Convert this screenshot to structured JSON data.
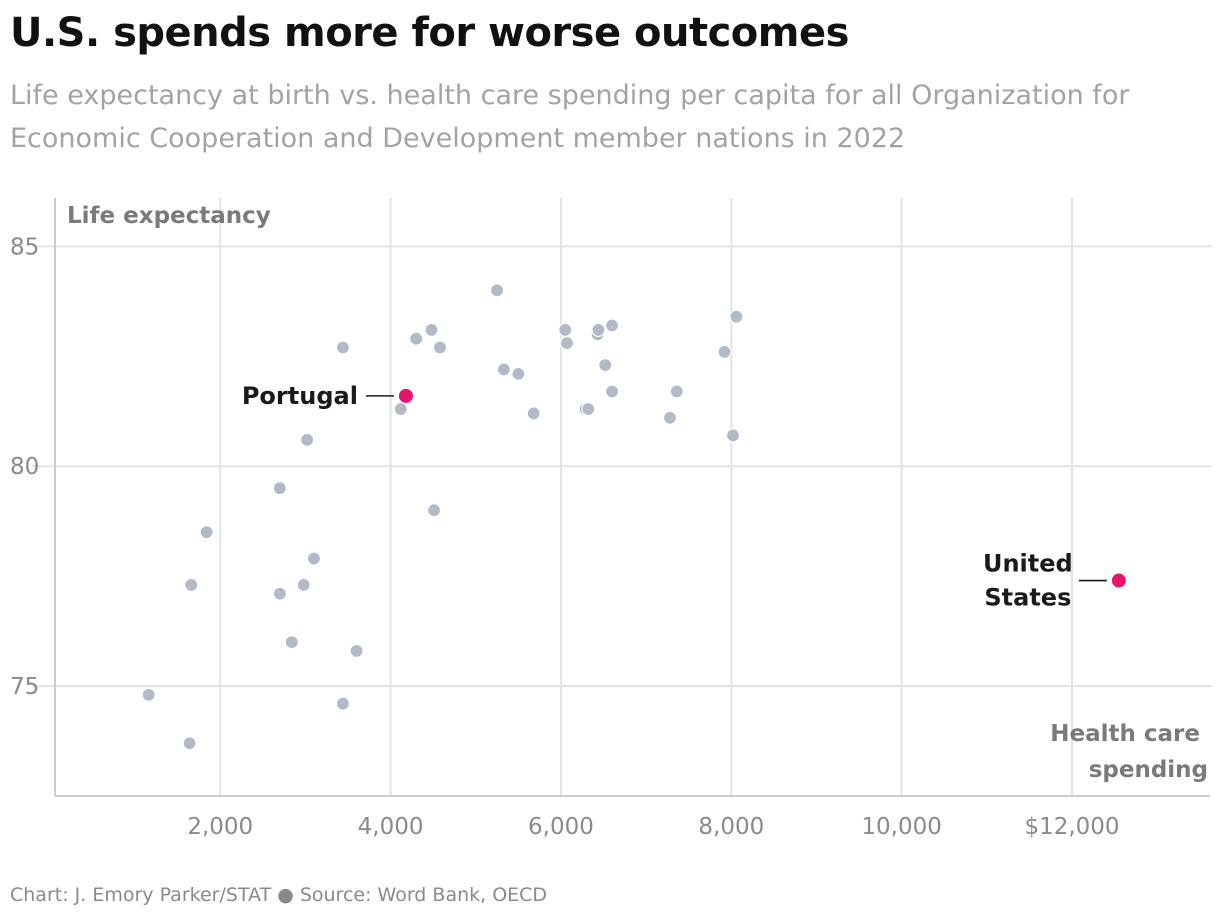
{
  "title": "U.S. spends more for worse outcomes",
  "subtitle": "Life expectancy at birth vs. health care spending per capita for all Organization for Economic Cooperation and Development member nations in 2022",
  "footer": "Chart: J. Emory Parker/STAT ● Source: Word Bank, OECD",
  "colors": {
    "point": "#b2bac8",
    "highlight": "#e8136f",
    "grid": "#e3e3e3",
    "axis": "#cccccc"
  },
  "chart_data": {
    "type": "scatter",
    "title": "U.S. spends more for worse outcomes",
    "subtitle": "Life expectancy at birth vs. health care spending per capita for all Organization for Economic Cooperation and Development member nations in 2022",
    "xlabel": "Health care spending",
    "ylabel": "Life expectancy",
    "xlim": [
      60,
      13620
    ],
    "ylim": [
      72.5,
      86.1
    ],
    "x_ticks": [
      {
        "value": 2000,
        "label": "2,000"
      },
      {
        "value": 4000,
        "label": "4,000"
      },
      {
        "value": 6000,
        "label": "6,000"
      },
      {
        "value": 8000,
        "label": "8,000"
      },
      {
        "value": 10000,
        "label": "10,000"
      },
      {
        "value": 12000,
        "label": "$12,000"
      }
    ],
    "y_ticks": [
      {
        "value": 75,
        "label": "75"
      },
      {
        "value": 80,
        "label": "80"
      },
      {
        "value": 85,
        "label": "85"
      }
    ],
    "grid": true,
    "points": [
      {
        "x": 1160,
        "y": 74.8
      },
      {
        "x": 1640,
        "y": 73.7
      },
      {
        "x": 1660,
        "y": 77.3
      },
      {
        "x": 1840,
        "y": 78.5
      },
      {
        "x": 2700,
        "y": 79.5
      },
      {
        "x": 2700,
        "y": 77.1
      },
      {
        "x": 2840,
        "y": 76.0
      },
      {
        "x": 2980,
        "y": 77.3
      },
      {
        "x": 3020,
        "y": 80.6
      },
      {
        "x": 3100,
        "y": 77.9
      },
      {
        "x": 3440,
        "y": 82.7
      },
      {
        "x": 3440,
        "y": 74.6
      },
      {
        "x": 3600,
        "y": 75.8
      },
      {
        "x": 4120,
        "y": 81.3
      },
      {
        "x": 4300,
        "y": 82.9
      },
      {
        "x": 4480,
        "y": 83.1
      },
      {
        "x": 4510,
        "y": 79.0
      },
      {
        "x": 4580,
        "y": 82.7
      },
      {
        "x": 5250,
        "y": 84.0
      },
      {
        "x": 5330,
        "y": 82.2
      },
      {
        "x": 5500,
        "y": 82.1
      },
      {
        "x": 5680,
        "y": 81.2
      },
      {
        "x": 6050,
        "y": 83.1
      },
      {
        "x": 6070,
        "y": 82.8
      },
      {
        "x": 6290,
        "y": 81.3
      },
      {
        "x": 6320,
        "y": 81.3
      },
      {
        "x": 6430,
        "y": 83.0
      },
      {
        "x": 6440,
        "y": 83.1
      },
      {
        "x": 6520,
        "y": 82.3
      },
      {
        "x": 6600,
        "y": 83.2
      },
      {
        "x": 6600,
        "y": 81.7
      },
      {
        "x": 7280,
        "y": 81.1
      },
      {
        "x": 7360,
        "y": 81.7
      },
      {
        "x": 7920,
        "y": 82.6
      },
      {
        "x": 8020,
        "y": 80.7
      },
      {
        "x": 8060,
        "y": 83.4
      }
    ],
    "highlighted": [
      {
        "name": "Portugal",
        "x": 4180,
        "y": 81.6,
        "label_lines": [
          "Portugal"
        ]
      },
      {
        "name": "United States",
        "x": 12550,
        "y": 77.4,
        "label_lines": [
          "United",
          "States"
        ]
      }
    ]
  }
}
